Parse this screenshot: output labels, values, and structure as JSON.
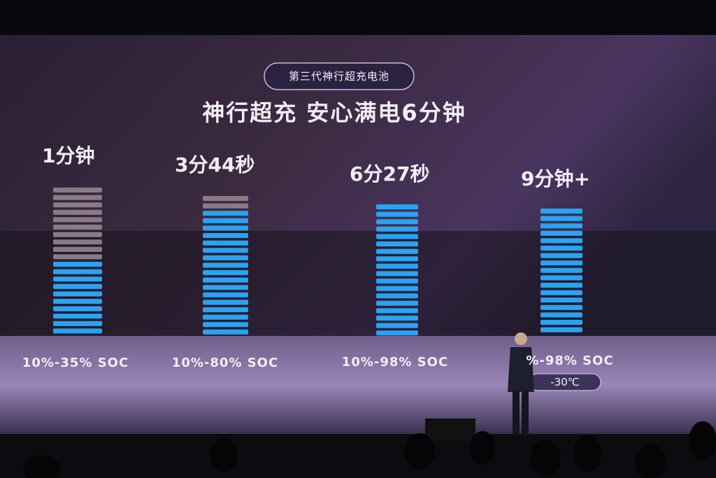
{
  "slide": {
    "badge": "第三代神行超充电池",
    "title": "神行超充  安心满电6分钟",
    "columns": [
      {
        "time": "1分钟",
        "range": "10%-35% SOC"
      },
      {
        "time": "3分44秒",
        "range": "10%-80% SOC"
      },
      {
        "time": "6分27秒",
        "range": "10%-98% SOC"
      },
      {
        "time": "9分钟+",
        "range": "%-98% SOC",
        "note": "-30℃"
      }
    ]
  }
}
